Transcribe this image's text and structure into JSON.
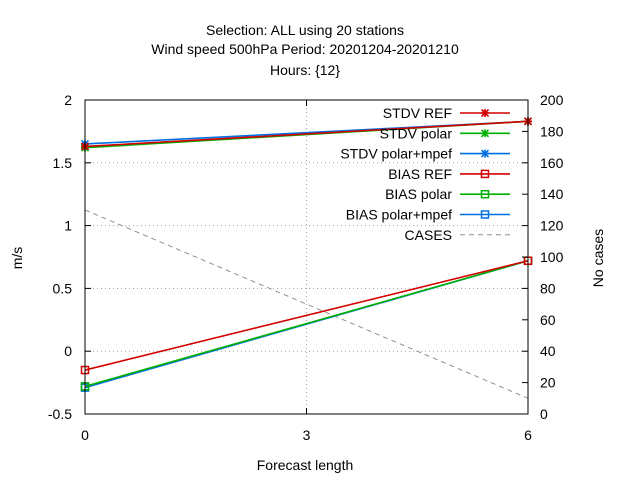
{
  "chart_data": {
    "type": "line",
    "title_lines": [
      "Selection: ALL using    20 stations",
      "Wind speed 500hPa   Period: 20201204-20201210",
      "Hours: {12}"
    ],
    "xlabel": "Forecast length",
    "ylabel": "m/s",
    "y2label": "No cases",
    "x_ticks": [
      "0",
      "3",
      "6"
    ],
    "y_ticks": [
      "-0.5",
      "0",
      "0.5",
      "1",
      "1.5",
      "2"
    ],
    "y2_ticks": [
      "0",
      "20",
      "40",
      "60",
      "80",
      "100",
      "120",
      "140",
      "160",
      "180",
      "200"
    ],
    "xlim": [
      0,
      6
    ],
    "ylim": [
      -0.5,
      2
    ],
    "y2lim": [
      0,
      200
    ],
    "grid": "dotted",
    "legend_position": "top-right",
    "series": [
      {
        "name": "STDV REF",
        "x": [
          0,
          6
        ],
        "values": [
          1.63,
          1.83
        ],
        "color": "#d40000",
        "marker": "star",
        "axis": "y1",
        "dash": "solid"
      },
      {
        "name": "STDV polar",
        "x": [
          0,
          6
        ],
        "values": [
          1.62,
          1.83
        ],
        "color": "#00b000",
        "marker": "star",
        "axis": "y1",
        "dash": "solid"
      },
      {
        "name": "STDV polar+mpef",
        "x": [
          0,
          6
        ],
        "values": [
          1.65,
          1.83
        ],
        "color": "#0070e0",
        "marker": "star",
        "axis": "y1",
        "dash": "solid"
      },
      {
        "name": "BIAS REF",
        "x": [
          0,
          6
        ],
        "values": [
          -0.15,
          0.72
        ],
        "color": "#d40000",
        "marker": "square",
        "axis": "y1",
        "dash": "solid"
      },
      {
        "name": "BIAS polar",
        "x": [
          0,
          6
        ],
        "values": [
          -0.28,
          0.72
        ],
        "color": "#00b000",
        "marker": "square",
        "axis": "y1",
        "dash": "solid"
      },
      {
        "name": "BIAS polar+mpef",
        "x": [
          0,
          6
        ],
        "values": [
          -0.29,
          0.72
        ],
        "color": "#0070e0",
        "marker": "square",
        "axis": "y1",
        "dash": "solid"
      },
      {
        "name": "CASES",
        "x": [
          0,
          6
        ],
        "values": [
          130,
          10
        ],
        "color": "#909090",
        "marker": "none",
        "axis": "y2",
        "dash": "dashed"
      }
    ]
  }
}
